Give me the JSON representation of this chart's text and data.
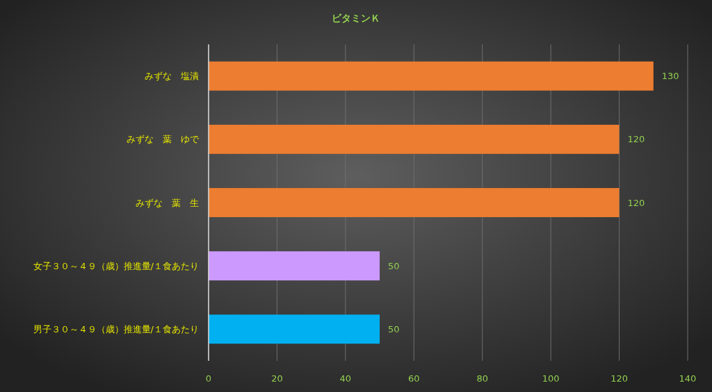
{
  "chart_data": {
    "type": "bar",
    "orientation": "horizontal",
    "title": "ビタミンＫ",
    "categories": [
      "みずな　塩漬",
      "みずな　葉　ゆで",
      "みずな　葉　生",
      "女子３０～４９（歳）推進量/１食あたり",
      "男子３０～４９（歳）推進量/１食あたり"
    ],
    "values": [
      130,
      120,
      120,
      50,
      50
    ],
    "colors": [
      "#ed7d31",
      "#ed7d31",
      "#ed7d31",
      "#cc99ff",
      "#00b0f0"
    ],
    "xlim": [
      0,
      140
    ],
    "xticks": [
      0,
      20,
      40,
      60,
      80,
      100,
      120,
      140
    ],
    "grid": "x",
    "data_labels": true
  }
}
